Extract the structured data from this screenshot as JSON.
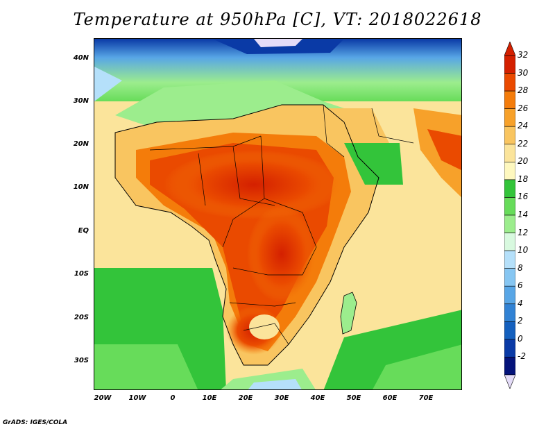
{
  "title": "Temperature at 950hPa [C], VT: 2018022618",
  "footer": "GrADS: IGES/COLA",
  "lat_ticks": [
    "40N",
    "30N",
    "20N",
    "10N",
    "EQ",
    "10S",
    "20S",
    "30S"
  ],
  "lon_ticks": [
    "20W",
    "10W",
    "0",
    "10E",
    "20E",
    "30E",
    "40E",
    "50E",
    "60E",
    "70E"
  ],
  "colorbar": {
    "labels": [
      "32",
      "30",
      "28",
      "26",
      "24",
      "22",
      "20",
      "18",
      "16",
      "14",
      "12",
      "10",
      "8",
      "6",
      "4",
      "2",
      "0",
      "-2"
    ],
    "colors": [
      "#d42000",
      "#ea4a00",
      "#f47c0a",
      "#f7a12a",
      "#f9c560",
      "#fbe49b",
      "#fef8bf",
      "#33c43a",
      "#67dc5a",
      "#9ced8d",
      "#d8f9df",
      "#b5e0fa",
      "#86c6f2",
      "#58a6e6",
      "#3182d4",
      "#1460be",
      "#0a3aa6",
      "#04137a"
    ],
    "top_arrow_color": "#d42000",
    "bottom_arrow_color": "#e4dcf8"
  }
}
